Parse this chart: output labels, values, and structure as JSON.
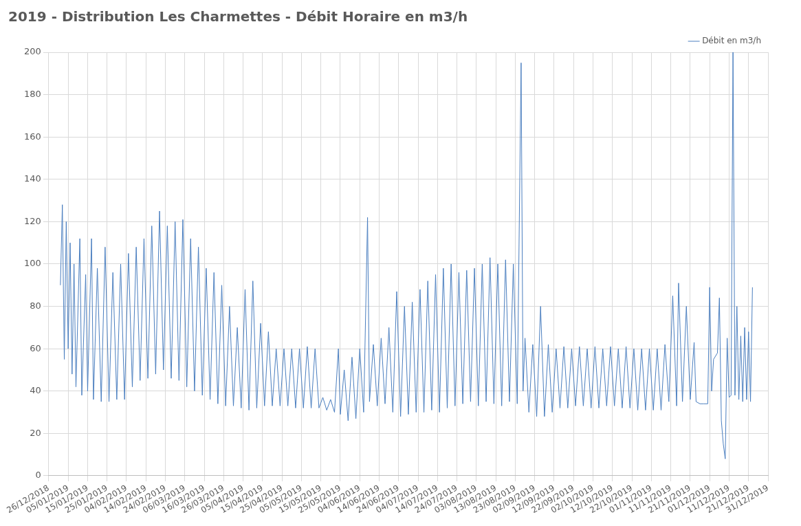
{
  "chart_data": {
    "type": "line",
    "title": "2019 - Distribution Les Charmettes - Débit Horaire en m3/h",
    "legend": "top right",
    "grid": true,
    "marker": "none",
    "line_style": "solid",
    "xlim": [
      "2018-12-26",
      "2019-12-31"
    ],
    "xticks": [
      {
        "value": "2018-12-26",
        "label": "26/12/2018"
      },
      {
        "value": "2019-01-05",
        "label": "05/01/2019"
      },
      {
        "value": "2019-01-15",
        "label": "15/01/2019"
      },
      {
        "value": "2019-01-25",
        "label": "25/01/2019"
      },
      {
        "value": "2019-02-04",
        "label": "04/02/2019"
      },
      {
        "value": "2019-02-14",
        "label": "14/02/2019"
      },
      {
        "value": "2019-02-24",
        "label": "24/02/2019"
      },
      {
        "value": "2019-03-06",
        "label": "06/03/2019"
      },
      {
        "value": "2019-03-16",
        "label": "16/03/2019"
      },
      {
        "value": "2019-03-26",
        "label": "26/03/2019"
      },
      {
        "value": "2019-04-05",
        "label": "05/04/2019"
      },
      {
        "value": "2019-04-15",
        "label": "15/04/2019"
      },
      {
        "value": "2019-04-25",
        "label": "25/04/2019"
      },
      {
        "value": "2019-05-05",
        "label": "05/05/2019"
      },
      {
        "value": "2019-05-15",
        "label": "15/05/2019"
      },
      {
        "value": "2019-05-25",
        "label": "25/05/2019"
      },
      {
        "value": "2019-06-04",
        "label": "04/06/2019"
      },
      {
        "value": "2019-06-14",
        "label": "14/06/2019"
      },
      {
        "value": "2019-06-24",
        "label": "24/06/2019"
      },
      {
        "value": "2019-07-04",
        "label": "04/07/2019"
      },
      {
        "value": "2019-07-14",
        "label": "14/07/2019"
      },
      {
        "value": "2019-07-24",
        "label": "24/07/2019"
      },
      {
        "value": "2019-08-03",
        "label": "03/08/2019"
      },
      {
        "value": "2019-08-13",
        "label": "13/08/2019"
      },
      {
        "value": "2019-08-23",
        "label": "23/08/2019"
      },
      {
        "value": "2019-09-02",
        "label": "02/09/2019"
      },
      {
        "value": "2019-09-12",
        "label": "12/09/2019"
      },
      {
        "value": "2019-09-22",
        "label": "22/09/2019"
      },
      {
        "value": "2019-10-02",
        "label": "02/10/2019"
      },
      {
        "value": "2019-10-12",
        "label": "12/10/2019"
      },
      {
        "value": "2019-10-22",
        "label": "22/10/2019"
      },
      {
        "value": "2019-11-01",
        "label": "01/11/2019"
      },
      {
        "value": "2019-11-11",
        "label": "11/11/2019"
      },
      {
        "value": "2019-11-21",
        "label": "21/11/2019"
      },
      {
        "value": "2019-12-01",
        "label": "01/12/2019"
      },
      {
        "value": "2019-12-11",
        "label": "11/12/2019"
      },
      {
        "value": "2019-12-21",
        "label": "21/12/2019"
      },
      {
        "value": "2019-12-31",
        "label": "31/12/2019"
      }
    ],
    "ylim": [
      0,
      200
    ],
    "yticks": [
      0,
      20,
      40,
      60,
      80,
      100,
      120,
      140,
      160,
      180,
      200
    ],
    "series": [
      {
        "name": "Débit en m3/h",
        "color": "#4a7ebf",
        "x": [
          "2019-01-01",
          "2019-01-02",
          "2019-01-03",
          "2019-01-04",
          "2019-01-05",
          "2019-01-06",
          "2019-01-07",
          "2019-01-08",
          "2019-01-09",
          "2019-01-11",
          "2019-01-12",
          "2019-01-14",
          "2019-01-15",
          "2019-01-17",
          "2019-01-18",
          "2019-01-20",
          "2019-01-22",
          "2019-01-24",
          "2019-01-26",
          "2019-01-28",
          "2019-01-30",
          "2019-02-01",
          "2019-02-03",
          "2019-02-05",
          "2019-02-07",
          "2019-02-09",
          "2019-02-11",
          "2019-02-13",
          "2019-02-15",
          "2019-02-17",
          "2019-02-19",
          "2019-02-21",
          "2019-02-23",
          "2019-02-25",
          "2019-02-27",
          "2019-03-01",
          "2019-03-03",
          "2019-03-05",
          "2019-03-07",
          "2019-03-09",
          "2019-03-11",
          "2019-03-13",
          "2019-03-15",
          "2019-03-17",
          "2019-03-19",
          "2019-03-21",
          "2019-03-23",
          "2019-03-25",
          "2019-03-27",
          "2019-03-29",
          "2019-03-31",
          "2019-04-02",
          "2019-04-04",
          "2019-04-06",
          "2019-04-08",
          "2019-04-10",
          "2019-04-12",
          "2019-04-14",
          "2019-04-16",
          "2019-04-18",
          "2019-04-20",
          "2019-04-22",
          "2019-04-24",
          "2019-04-26",
          "2019-04-28",
          "2019-04-30",
          "2019-05-02",
          "2019-05-04",
          "2019-05-06",
          "2019-05-08",
          "2019-05-10",
          "2019-05-12",
          "2019-05-14",
          "2019-05-16",
          "2019-05-18",
          "2019-05-20",
          "2019-05-22",
          "2019-05-24",
          "2019-05-25",
          "2019-05-27",
          "2019-05-29",
          "2019-05-31",
          "2019-06-02",
          "2019-06-04",
          "2019-06-06",
          "2019-06-08",
          "2019-06-09",
          "2019-06-11",
          "2019-06-13",
          "2019-06-15",
          "2019-06-17",
          "2019-06-19",
          "2019-06-21",
          "2019-06-23",
          "2019-06-25",
          "2019-06-27",
          "2019-06-29",
          "2019-07-01",
          "2019-07-03",
          "2019-07-05",
          "2019-07-07",
          "2019-07-09",
          "2019-07-11",
          "2019-07-13",
          "2019-07-15",
          "2019-07-17",
          "2019-07-19",
          "2019-07-21",
          "2019-07-23",
          "2019-07-25",
          "2019-07-27",
          "2019-07-29",
          "2019-07-31",
          "2019-08-02",
          "2019-08-04",
          "2019-08-06",
          "2019-08-08",
          "2019-08-10",
          "2019-08-12",
          "2019-08-14",
          "2019-08-16",
          "2019-08-18",
          "2019-08-20",
          "2019-08-22",
          "2019-08-24",
          "2019-08-26",
          "2019-08-27",
          "2019-08-28",
          "2019-08-30",
          "2019-09-01",
          "2019-09-03",
          "2019-09-05",
          "2019-09-07",
          "2019-09-09",
          "2019-09-11",
          "2019-09-13",
          "2019-09-15",
          "2019-09-17",
          "2019-09-19",
          "2019-09-21",
          "2019-09-23",
          "2019-09-25",
          "2019-09-27",
          "2019-09-29",
          "2019-10-01",
          "2019-10-03",
          "2019-10-05",
          "2019-10-07",
          "2019-10-09",
          "2019-10-11",
          "2019-10-13",
          "2019-10-15",
          "2019-10-17",
          "2019-10-19",
          "2019-10-21",
          "2019-10-23",
          "2019-10-25",
          "2019-10-27",
          "2019-10-29",
          "2019-10-31",
          "2019-11-02",
          "2019-11-04",
          "2019-11-06",
          "2019-11-08",
          "2019-11-10",
          "2019-11-12",
          "2019-11-14",
          "2019-11-15",
          "2019-11-17",
          "2019-11-19",
          "2019-11-21",
          "2019-11-23",
          "2019-11-24",
          "2019-11-26",
          "2019-11-28",
          "2019-11-30",
          "2019-12-01",
          "2019-12-02",
          "2019-12-03",
          "2019-12-05",
          "2019-12-06",
          "2019-12-07",
          "2019-12-08",
          "2019-12-09",
          "2019-12-10",
          "2019-12-11",
          "2019-12-12",
          "2019-12-13",
          "2019-12-14",
          "2019-12-15",
          "2019-12-16",
          "2019-12-17",
          "2019-12-18",
          "2019-12-19",
          "2019-12-20",
          "2019-12-21",
          "2019-12-22",
          "2019-12-23"
        ],
        "values": [
          90,
          128,
          55,
          120,
          60,
          110,
          48,
          100,
          42,
          112,
          38,
          95,
          40,
          112,
          36,
          98,
          35,
          108,
          35,
          96,
          36,
          100,
          36,
          105,
          42,
          108,
          45,
          112,
          46,
          118,
          48,
          125,
          50,
          118,
          46,
          120,
          45,
          121,
          42,
          112,
          40,
          108,
          38,
          98,
          36,
          96,
          34,
          90,
          33,
          80,
          33,
          70,
          32,
          88,
          31,
          92,
          32,
          72,
          33,
          68,
          33,
          60,
          33,
          60,
          33,
          60,
          32,
          60,
          32,
          61,
          32,
          60,
          32,
          37,
          31,
          36,
          30,
          60,
          29,
          50,
          26,
          56,
          27,
          60,
          30,
          122,
          35,
          62,
          33,
          65,
          34,
          70,
          30,
          87,
          28,
          80,
          29,
          82,
          30,
          88,
          30,
          92,
          31,
          95,
          30,
          98,
          32,
          100,
          33,
          96,
          34,
          97,
          35,
          98,
          33,
          100,
          35,
          103,
          34,
          100,
          33,
          102,
          35,
          100,
          34,
          195,
          40,
          65,
          30,
          62,
          28,
          80,
          28,
          62,
          30,
          60,
          32,
          61,
          32,
          60,
          33,
          61,
          33,
          60,
          32,
          61,
          32,
          60,
          33,
          61,
          33,
          60,
          32,
          61,
          32,
          60,
          31,
          60,
          31,
          60,
          31,
          60,
          31,
          62,
          35,
          85,
          33,
          91,
          35,
          80,
          36,
          63,
          35,
          34,
          34,
          34,
          89,
          40,
          55,
          58,
          84,
          26,
          15,
          8,
          65,
          37,
          38,
          200,
          38,
          80,
          36,
          66,
          35,
          70,
          36,
          68,
          35,
          89
        ]
      }
    ]
  }
}
